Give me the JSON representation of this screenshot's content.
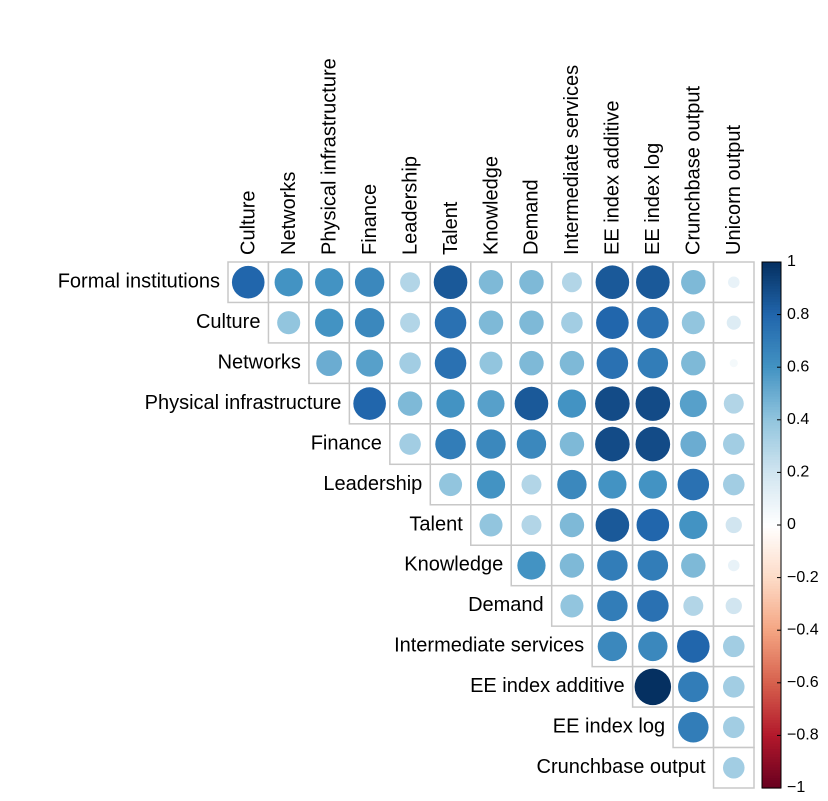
{
  "chart_data": {
    "type": "corrplot",
    "rows": [
      "Formal institutions",
      "Culture",
      "Networks",
      "Physical infrastructure",
      "Finance",
      "Leadership",
      "Talent",
      "Knowledge",
      "Demand",
      "Intermediate services",
      "EE index additive",
      "EE index log",
      "Crunchbase output"
    ],
    "columns": [
      "Culture",
      "Networks",
      "Physical infrastructure",
      "Finance",
      "Leadership",
      "Talent",
      "Knowledge",
      "Demand",
      "Intermediate services",
      "EE index additive",
      "EE index log",
      "Crunchbase output",
      "Unicorn output"
    ],
    "values": [
      [
        0.8,
        0.6,
        0.6,
        0.65,
        0.3,
        0.85,
        0.45,
        0.45,
        0.3,
        0.85,
        0.85,
        0.45,
        0.1
      ],
      [
        0.4,
        0.6,
        0.65,
        0.3,
        0.75,
        0.45,
        0.45,
        0.35,
        0.8,
        0.75,
        0.4,
        0.15
      ],
      [
        0.5,
        0.55,
        0.35,
        0.75,
        0.4,
        0.45,
        0.45,
        0.75,
        0.7,
        0.45,
        0.05
      ],
      [
        0.8,
        0.45,
        0.6,
        0.55,
        0.85,
        0.6,
        0.9,
        0.9,
        0.55,
        0.3
      ],
      [
        0.35,
        0.7,
        0.65,
        0.65,
        0.45,
        0.9,
        0.9,
        0.5,
        0.35
      ],
      [
        0.4,
        0.6,
        0.3,
        0.65,
        0.6,
        0.6,
        0.75,
        0.35
      ],
      [
        0.4,
        0.3,
        0.45,
        0.85,
        0.8,
        0.6,
        0.2
      ],
      [
        0.6,
        0.45,
        0.7,
        0.7,
        0.45,
        0.1
      ],
      [
        0.4,
        0.7,
        0.75,
        0.3,
        0.2
      ],
      [
        0.65,
        0.65,
        0.8,
        0.35
      ],
      [
        1.0,
        0.7,
        0.35
      ],
      [
        0.7,
        0.35
      ],
      [
        0.35
      ]
    ],
    "clim": [
      -1,
      1
    ],
    "colorbar_ticks": [
      1,
      0.8,
      0.6,
      0.4,
      0.2,
      0,
      {
        "value": -0.2,
        "label": "−0.2"
      },
      {
        "value": -0.4,
        "label": "−0.4"
      },
      {
        "value": -0.6,
        "label": "−0.6"
      },
      {
        "value": -0.8,
        "label": "−0.8"
      },
      {
        "value": -1,
        "label": "−1"
      }
    ],
    "colormap": [
      "#67001F",
      "#B2182B",
      "#D6604D",
      "#F4A582",
      "#FDDBC7",
      "#FFFFFF",
      "#D1E5F0",
      "#92C5DE",
      "#4393C3",
      "#2166AC",
      "#053061"
    ]
  }
}
